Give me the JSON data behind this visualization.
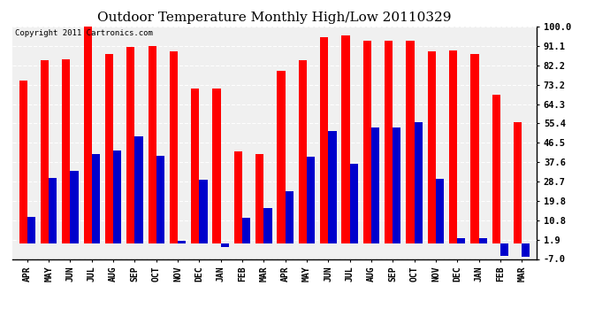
{
  "title": "Outdoor Temperature Monthly High/Low 20110329",
  "copyright": "Copyright 2011 Cartronics.com",
  "months": [
    "APR",
    "MAY",
    "JUN",
    "JUL",
    "AUG",
    "SEP",
    "OCT",
    "NOV",
    "DEC",
    "JAN",
    "FEB",
    "MAR",
    "APR",
    "MAY",
    "JUN",
    "JUL",
    "AUG",
    "SEP",
    "OCT",
    "NOV",
    "DEC",
    "JAN",
    "FEB",
    "MAR"
  ],
  "highs": [
    75.0,
    84.5,
    85.0,
    102.0,
    87.5,
    90.5,
    91.0,
    88.5,
    71.5,
    71.5,
    42.5,
    41.5,
    79.5,
    84.5,
    95.0,
    96.0,
    93.5,
    93.5,
    93.5,
    88.5,
    89.0,
    87.5,
    68.5,
    56.0
  ],
  "lows": [
    12.5,
    30.5,
    33.5,
    41.5,
    43.0,
    49.5,
    40.5,
    1.5,
    29.5,
    -1.5,
    12.0,
    16.5,
    24.0,
    40.0,
    52.0,
    37.0,
    53.5,
    53.5,
    56.0,
    30.0,
    2.5,
    2.5,
    -5.5,
    -6.0
  ],
  "ylim": [
    -7.0,
    100.0
  ],
  "yticks": [
    100.0,
    91.1,
    82.2,
    73.2,
    64.3,
    55.4,
    46.5,
    37.6,
    28.7,
    19.8,
    10.8,
    1.9,
    -7.0
  ],
  "bar_width": 0.38,
  "high_color": "#ff0000",
  "low_color": "#0000cc",
  "bg_color": "#ffffff",
  "plot_bg_color": "#ffffff",
  "grid_color": "#aaaaaa",
  "title_fontsize": 11,
  "copyright_fontsize": 6.5,
  "tick_fontsize": 7,
  "ytick_fontsize": 7.5
}
